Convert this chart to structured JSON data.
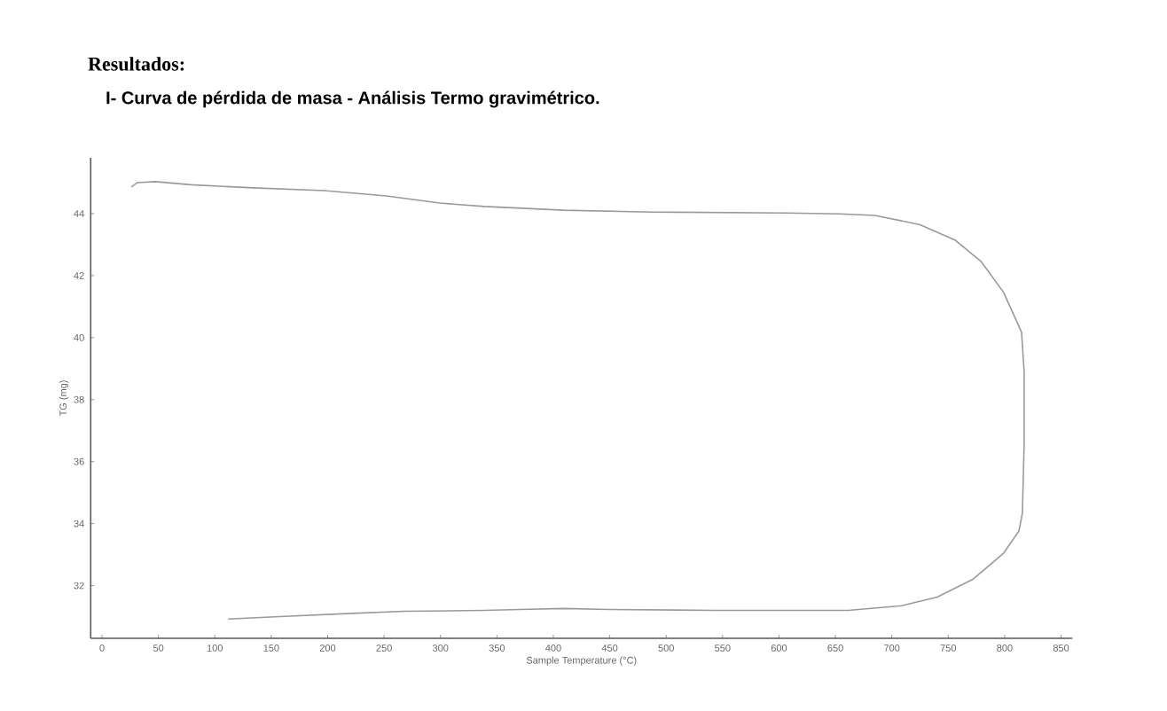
{
  "chart_data": {
    "type": "line",
    "title": "Resultados:",
    "subtitle": "I-  Curva de pérdida de masa - Análisis  Termo gravimétrico.",
    "xlabel": "Sample Temperature (°C)",
    "ylabel": "TG (mg)",
    "x": [
      26.0,
      31.5,
      47.2,
      78.7,
      133.9,
      196.9,
      252.0,
      299.2,
      338.6,
      409.4,
      488.2,
      606.3,
      653.5,
      685.0,
      724.4,
      755.9,
      779.5,
      799.2,
      815.0,
      817.3,
      817.3,
      815.7,
      812.6,
      799.2,
      771.7,
      740.2,
      708.7,
      661.4,
      543.3,
      448.8,
      409.4,
      370.1,
      338.6,
      267.7,
      212.6,
      157.5,
      111.8
    ],
    "series": [
      {
        "color": "#9a9a9a",
        "values": [
          44.86,
          45.0,
          45.03,
          44.93,
          44.83,
          44.74,
          44.57,
          44.34,
          44.23,
          44.11,
          44.05,
          44.02,
          43.99,
          43.94,
          43.65,
          43.15,
          42.44,
          41.45,
          40.17,
          38.88,
          36.61,
          34.33,
          33.76,
          33.05,
          32.2,
          31.63,
          31.35,
          31.2,
          31.2,
          31.23,
          31.26,
          31.23,
          31.2,
          31.17,
          31.09,
          31.0,
          30.92
        ]
      }
    ],
    "xlim": [
      -10,
      860
    ],
    "xticks": [
      0,
      50,
      100,
      150,
      200,
      250,
      300,
      350,
      400,
      450,
      500,
      550,
      600,
      650,
      700,
      750,
      800,
      850
    ],
    "ylim": [
      30.3,
      45.8
    ],
    "yticks": [
      32,
      34,
      36,
      38,
      40,
      42,
      44
    ],
    "grid": false,
    "legend": false,
    "marker": "none",
    "line_style": "solid"
  }
}
